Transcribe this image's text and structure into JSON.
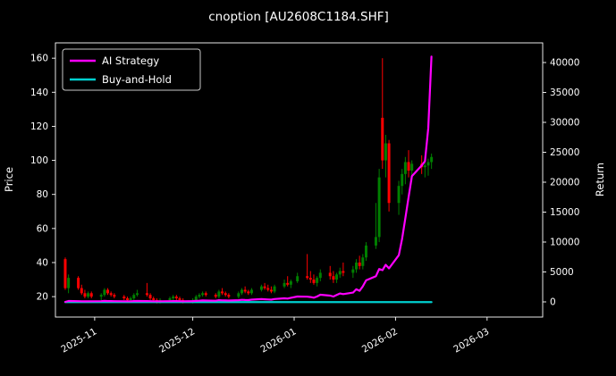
{
  "chart_data": {
    "type": "candlestick+line",
    "title": "cnoption [AU2608C1184.SHF]",
    "ylabel_left": "Price",
    "ylabel_right": "Return",
    "background": "#000000",
    "text_color": "#ffffff",
    "up_color": "#008000",
    "down_color": "#ff0000",
    "frame_color": "#ffffff",
    "x_ticks": [
      {
        "date": "2025-11-01",
        "label": "2025-11"
      },
      {
        "date": "2025-12-01",
        "label": "2025-12"
      },
      {
        "date": "2026-01-01",
        "label": "2026-01"
      },
      {
        "date": "2026-02-01",
        "label": "2026-02"
      },
      {
        "date": "2026-03-01",
        "label": "2026-03"
      }
    ],
    "y_left_ticks": [
      20,
      40,
      60,
      80,
      100,
      120,
      140,
      160
    ],
    "y_right_ticks": [
      0,
      5000,
      10000,
      15000,
      20000,
      25000,
      30000,
      35000,
      40000
    ],
    "price_axis_range": [
      8,
      169
    ],
    "return_axis_range": [
      -2537,
      43284
    ],
    "x_axis_range": [
      "2025-10-20",
      "2026-03-18"
    ],
    "legend": {
      "position": "upper-left",
      "items": [
        {
          "label": "AI Strategy",
          "color": "#ff00ff"
        },
        {
          "label": "Buy-and-Hold",
          "color": "#00d0d0"
        }
      ]
    },
    "series": [
      {
        "name": "AI Strategy",
        "type": "line",
        "axis": "right",
        "color": "#ff00ff",
        "values_from": "days.ai"
      },
      {
        "name": "Buy-and-Hold",
        "type": "line",
        "axis": "right",
        "color": "#00d0d0",
        "constant": -40
      },
      {
        "name": "Price OHLC",
        "type": "candlestick",
        "axis": "left",
        "values_from": "days.ohlc"
      }
    ],
    "buy_hold_constant": -40,
    "days_format": [
      "date",
      "open",
      "high",
      "low",
      "close",
      "ai_return"
    ],
    "days": [
      [
        "2025-10-23",
        42,
        43,
        24,
        25,
        0
      ],
      [
        "2025-10-24",
        25,
        33,
        22,
        31,
        150
      ],
      [
        "2025-10-27",
        31,
        32,
        24,
        25,
        120
      ],
      [
        "2025-10-28",
        25,
        27,
        21,
        22,
        100
      ],
      [
        "2025-10-29",
        22,
        24,
        19,
        20,
        90
      ],
      [
        "2025-10-30",
        20,
        23,
        19,
        22,
        110
      ],
      [
        "2025-10-31",
        22,
        23,
        19,
        20,
        100
      ],
      [
        "2025-11-03",
        20,
        22,
        18,
        21,
        120
      ],
      [
        "2025-11-04",
        21,
        25,
        20,
        24,
        160
      ],
      [
        "2025-11-05",
        24,
        25,
        21,
        22,
        140
      ],
      [
        "2025-11-06",
        22,
        23,
        20,
        21,
        130
      ],
      [
        "2025-11-07",
        21,
        22,
        19,
        20,
        120
      ],
      [
        "2025-11-10",
        20,
        21,
        18,
        19,
        110
      ],
      [
        "2025-11-11",
        19,
        20,
        17,
        18,
        100
      ],
      [
        "2025-11-12",
        18,
        20,
        17,
        19,
        110
      ],
      [
        "2025-11-13",
        19,
        22,
        18,
        21,
        130
      ],
      [
        "2025-11-14",
        21,
        24,
        20,
        22,
        150
      ],
      [
        "2025-11-17",
        22,
        28,
        20,
        21,
        140
      ],
      [
        "2025-11-18",
        21,
        22,
        18,
        19,
        120
      ],
      [
        "2025-11-19",
        19,
        20,
        17,
        18,
        110
      ],
      [
        "2025-11-20",
        18,
        19,
        16,
        17,
        100
      ],
      [
        "2025-11-21",
        17,
        19,
        16,
        18,
        110
      ],
      [
        "2025-11-24",
        18,
        20,
        17,
        19,
        120
      ],
      [
        "2025-11-25",
        19,
        21,
        18,
        20,
        140
      ],
      [
        "2025-11-26",
        20,
        21,
        18,
        19,
        130
      ],
      [
        "2025-11-27",
        19,
        20,
        17,
        18,
        120
      ],
      [
        "2025-11-28",
        18,
        19,
        16,
        17,
        110
      ],
      [
        "2025-12-01",
        17,
        19,
        16,
        18,
        130
      ],
      [
        "2025-12-02",
        18,
        21,
        17,
        20,
        170
      ],
      [
        "2025-12-03",
        20,
        22,
        19,
        21,
        200
      ],
      [
        "2025-12-04",
        21,
        23,
        20,
        22,
        240
      ],
      [
        "2025-12-05",
        22,
        23,
        20,
        21,
        220
      ],
      [
        "2025-12-08",
        21,
        22,
        19,
        20,
        200
      ],
      [
        "2025-12-09",
        20,
        24,
        19,
        23,
        280
      ],
      [
        "2025-12-10",
        23,
        25,
        21,
        22,
        260
      ],
      [
        "2025-12-11",
        22,
        23,
        20,
        21,
        240
      ],
      [
        "2025-12-12",
        21,
        22,
        19,
        20,
        220
      ],
      [
        "2025-12-15",
        20,
        23,
        19,
        22,
        280
      ],
      [
        "2025-12-16",
        22,
        25,
        21,
        24,
        350
      ],
      [
        "2025-12-17",
        24,
        26,
        22,
        23,
        320
      ],
      [
        "2025-12-18",
        23,
        24,
        21,
        22,
        300
      ],
      [
        "2025-12-19",
        22,
        25,
        21,
        24,
        380
      ],
      [
        "2025-12-22",
        24,
        27,
        23,
        26,
        470
      ],
      [
        "2025-12-23",
        26,
        28,
        24,
        25,
        430
      ],
      [
        "2025-12-24",
        25,
        27,
        23,
        24,
        400
      ],
      [
        "2025-12-25",
        24,
        26,
        22,
        23,
        370
      ],
      [
        "2025-12-26",
        23,
        27,
        22,
        26,
        480
      ],
      [
        "2025-12-29",
        26,
        30,
        25,
        28,
        600
      ],
      [
        "2025-12-30",
        28,
        32,
        26,
        27,
        560
      ],
      [
        "2025-12-31",
        27,
        30,
        25,
        29,
        680
      ],
      [
        "2026-01-02",
        29,
        34,
        28,
        32,
        900
      ],
      [
        "2026-01-05",
        32,
        45,
        30,
        31,
        860
      ],
      [
        "2026-01-06",
        31,
        35,
        28,
        30,
        800
      ],
      [
        "2026-01-07",
        30,
        33,
        27,
        28,
        700
      ],
      [
        "2026-01-08",
        28,
        32,
        26,
        31,
        900
      ],
      [
        "2026-01-09",
        31,
        36,
        29,
        34,
        1200
      ],
      [
        "2026-01-12",
        34,
        38,
        30,
        32,
        1050
      ],
      [
        "2026-01-13",
        32,
        35,
        28,
        30,
        900
      ],
      [
        "2026-01-14",
        30,
        34,
        28,
        33,
        1150
      ],
      [
        "2026-01-15",
        33,
        37,
        31,
        35,
        1400
      ],
      [
        "2026-01-16",
        35,
        40,
        32,
        34,
        1300
      ],
      [
        "2026-01-19",
        34,
        38,
        31,
        36,
        1550
      ],
      [
        "2026-01-20",
        36,
        42,
        34,
        40,
        2100
      ],
      [
        "2026-01-21",
        40,
        44,
        36,
        38,
        1850
      ],
      [
        "2026-01-22",
        38,
        45,
        36,
        43,
        2600
      ],
      [
        "2026-01-23",
        43,
        52,
        41,
        50,
        3600
      ],
      [
        "2026-01-26",
        50,
        75,
        48,
        55,
        4300
      ],
      [
        "2026-01-27",
        55,
        95,
        52,
        90,
        5500
      ],
      [
        "2026-01-28",
        125,
        160,
        95,
        100,
        5300
      ],
      [
        "2026-01-29",
        100,
        115,
        90,
        110,
        6200
      ],
      [
        "2026-01-30",
        110,
        112,
        70,
        75,
        5600
      ],
      [
        "2026-02-02",
        75,
        88,
        68,
        85,
        7800
      ],
      [
        "2026-02-03",
        85,
        95,
        80,
        92,
        10500
      ],
      [
        "2026-02-04",
        92,
        102,
        86,
        99,
        14000
      ],
      [
        "2026-02-05",
        99,
        106,
        90,
        94,
        17500
      ],
      [
        "2026-02-06",
        94,
        100,
        88,
        98,
        21000
      ],
      [
        "2026-02-09",
        98,
        103,
        92,
        96,
        22800
      ],
      [
        "2026-02-10",
        96,
        100,
        90,
        97,
        23500
      ],
      [
        "2026-02-11",
        97,
        101,
        91,
        99,
        29000
      ],
      [
        "2026-02-12",
        99,
        104,
        95,
        102,
        41000
      ]
    ]
  }
}
